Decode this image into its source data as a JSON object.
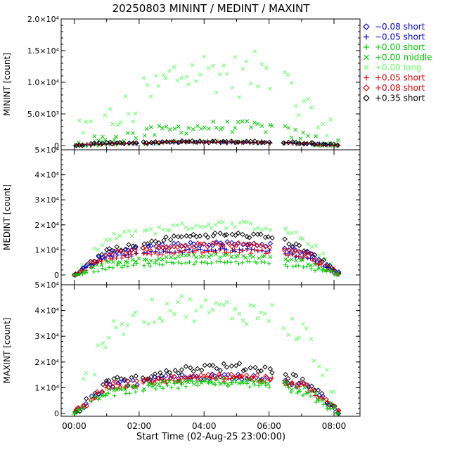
{
  "title": "20250803 MININT / MEDINT / MAXINT",
  "xlabel": "Start Time (02-Aug-25 23:00:00)",
  "x_ticks": [
    "00:00",
    "02:00",
    "04:00",
    "06:00",
    "08:00"
  ],
  "legend": [
    {
      "label": "−0.08 short",
      "color": "#0000cc",
      "marker": "diamond"
    },
    {
      "label": "−0.05 short",
      "color": "#0000cc",
      "marker": "plus"
    },
    {
      "label": "+0.00 short",
      "color": "#00cc00",
      "marker": "plus"
    },
    {
      "label": "+0.00 middle",
      "color": "#00cc00",
      "marker": "cross"
    },
    {
      "label": "+0.00 long",
      "color": "#66ff66",
      "marker": "cross"
    },
    {
      "label": "+0.05 short",
      "color": "#dd0000",
      "marker": "plus"
    },
    {
      "label": "+0.08 short",
      "color": "#dd0000",
      "marker": "diamond"
    },
    {
      "label": "+0.35 short",
      "color": "#000000",
      "marker": "diamond"
    }
  ],
  "chart_data": [
    {
      "type": "scatter",
      "name": "MININT",
      "ylabel": "MININT [count]",
      "ylim": [
        0,
        20000
      ],
      "y_tick_labels": [
        "0",
        "5.0×10³",
        "1.0×10⁴",
        "1.5×10⁴",
        "2.0×10⁴"
      ],
      "y_tick_values": [
        0,
        5000,
        10000,
        15000,
        20000
      ],
      "xlim_hours": [
        -0.4,
        8.8
      ],
      "gaps_hours": [
        [
          0.4,
          0.5
        ],
        [
          2.0,
          2.1
        ],
        [
          6.1,
          6.4
        ]
      ],
      "data_range_hours": [
        0.0,
        8.2
      ],
      "series": [
        {
          "name": "+0.00 long",
          "color": "#66ff66",
          "marker": "cross",
          "level": [
            0,
            3000,
            7000,
            11000,
            12000,
            11000,
            12000,
            4000,
            0
          ],
          "spread": 3500
        },
        {
          "name": "+0.00 middle",
          "color": "#00cc00",
          "marker": "cross",
          "level": [
            0,
            1000,
            1800,
            2600,
            3000,
            3000,
            2800,
            1200,
            0
          ],
          "spread": 900
        },
        {
          "name": "+0.00 short",
          "color": "#00cc00",
          "marker": "plus",
          "level": [
            0,
            200,
            300,
            500,
            600,
            600,
            500,
            300,
            0
          ],
          "spread": 200
        },
        {
          "name": "−0.05 short",
          "color": "#0000cc",
          "marker": "plus",
          "level": [
            0,
            300,
            400,
            500,
            500,
            500,
            500,
            300,
            0
          ],
          "spread": 150
        },
        {
          "name": "+0.05 short",
          "color": "#dd0000",
          "marker": "plus",
          "level": [
            0,
            300,
            400,
            500,
            500,
            500,
            500,
            300,
            0
          ],
          "spread": 150
        },
        {
          "name": "+0.35 short",
          "color": "#000000",
          "marker": "diamond",
          "level": [
            0,
            400,
            500,
            600,
            600,
            600,
            600,
            400,
            0
          ],
          "spread": 150
        }
      ]
    },
    {
      "type": "scatter",
      "name": "MEDINT",
      "ylabel": "MEDINT [count]",
      "ylim": [
        0,
        50000
      ],
      "y_tick_labels": [
        "0",
        "1×10⁴",
        "2×10⁴",
        "3×10⁴",
        "4×10⁴",
        "5×10⁴"
      ],
      "y_tick_values": [
        0,
        10000,
        20000,
        30000,
        40000,
        50000
      ],
      "xlim_hours": [
        -0.4,
        8.8
      ],
      "gaps_hours": [
        [
          0.4,
          0.5
        ],
        [
          2.0,
          2.1
        ],
        [
          6.1,
          6.4
        ]
      ],
      "data_range_hours": [
        0.0,
        8.2
      ],
      "series": [
        {
          "name": "+0.00 long",
          "color": "#66ff66",
          "marker": "cross",
          "level": [
            0,
            15000,
            17000,
            19000,
            20000,
            20000,
            19000,
            14000,
            0
          ],
          "spread": 1500
        },
        {
          "name": "+0.35 short",
          "color": "#000000",
          "marker": "diamond",
          "level": [
            0,
            10000,
            12000,
            15000,
            16000,
            16000,
            15000,
            10000,
            0
          ],
          "spread": 1000
        },
        {
          "name": "−0.08 short",
          "color": "#0000cc",
          "marker": "diamond",
          "level": [
            0,
            9000,
            10500,
            12000,
            12500,
            12500,
            12000,
            9000,
            0
          ],
          "spread": 800
        },
        {
          "name": "+0.08 short",
          "color": "#dd0000",
          "marker": "diamond",
          "level": [
            0,
            8500,
            10000,
            11500,
            12000,
            12000,
            11500,
            8500,
            0
          ],
          "spread": 800
        },
        {
          "name": "−0.05 short",
          "color": "#0000cc",
          "marker": "plus",
          "level": [
            0,
            7000,
            8500,
            9500,
            10000,
            10000,
            9500,
            7000,
            0
          ],
          "spread": 700
        },
        {
          "name": "+0.05 short",
          "color": "#dd0000",
          "marker": "plus",
          "level": [
            0,
            6500,
            8000,
            9000,
            9500,
            9500,
            9000,
            6500,
            0
          ],
          "spread": 700
        },
        {
          "name": "+0.00 middle",
          "color": "#00cc00",
          "marker": "cross",
          "level": [
            0,
            5000,
            6000,
            7000,
            7500,
            7500,
            7000,
            5000,
            0
          ],
          "spread": 700
        },
        {
          "name": "+0.00 short",
          "color": "#00cc00",
          "marker": "plus",
          "level": [
            0,
            3000,
            4000,
            4500,
            5000,
            5000,
            4500,
            3000,
            0
          ],
          "spread": 700
        }
      ]
    },
    {
      "type": "scatter",
      "name": "MAXINT",
      "ylabel": "MAXINT [count]",
      "ylim": [
        0,
        50000
      ],
      "y_tick_labels": [
        "0",
        "1×10⁴",
        "2×10⁴",
        "3×10⁴",
        "4×10⁴",
        "5×10⁴"
      ],
      "y_tick_values": [
        0,
        10000,
        20000,
        30000,
        40000,
        50000
      ],
      "xlim_hours": [
        -0.4,
        8.8
      ],
      "gaps_hours": [
        [
          0.4,
          0.5
        ],
        [
          2.0,
          2.1
        ],
        [
          6.1,
          6.4
        ]
      ],
      "data_range_hours": [
        0.0,
        8.2
      ],
      "series": [
        {
          "name": "+0.00 long",
          "color": "#66ff66",
          "marker": "cross",
          "level": [
            0,
            30000,
            38000,
            42000,
            40000,
            40000,
            38000,
            30000,
            0
          ],
          "spread": 5000
        },
        {
          "name": "+0.35 short",
          "color": "#000000",
          "marker": "diamond",
          "level": [
            0,
            12000,
            14000,
            17000,
            18000,
            18000,
            17000,
            12000,
            0
          ],
          "spread": 1500
        },
        {
          "name": "−0.08 short",
          "color": "#0000cc",
          "marker": "diamond",
          "level": [
            0,
            11000,
            12500,
            14000,
            14500,
            14500,
            14000,
            10500,
            0
          ],
          "spread": 1200
        },
        {
          "name": "+0.08 short",
          "color": "#dd0000",
          "marker": "diamond",
          "level": [
            0,
            10500,
            12000,
            13500,
            14000,
            14000,
            13500,
            10000,
            0
          ],
          "spread": 1200
        },
        {
          "name": "+0.05 short",
          "color": "#dd0000",
          "marker": "plus",
          "level": [
            0,
            10000,
            11500,
            13000,
            13500,
            13500,
            13000,
            9500,
            0
          ],
          "spread": 1200
        },
        {
          "name": "+0.00 middle",
          "color": "#00cc00",
          "marker": "cross",
          "level": [
            0,
            9000,
            10500,
            12000,
            12500,
            12500,
            12000,
            9000,
            0
          ],
          "spread": 1200
        },
        {
          "name": "+0.00 short",
          "color": "#00cc00",
          "marker": "plus",
          "level": [
            0,
            8000,
            9500,
            11000,
            11500,
            11500,
            11000,
            8000,
            0
          ],
          "spread": 1500
        }
      ]
    }
  ]
}
